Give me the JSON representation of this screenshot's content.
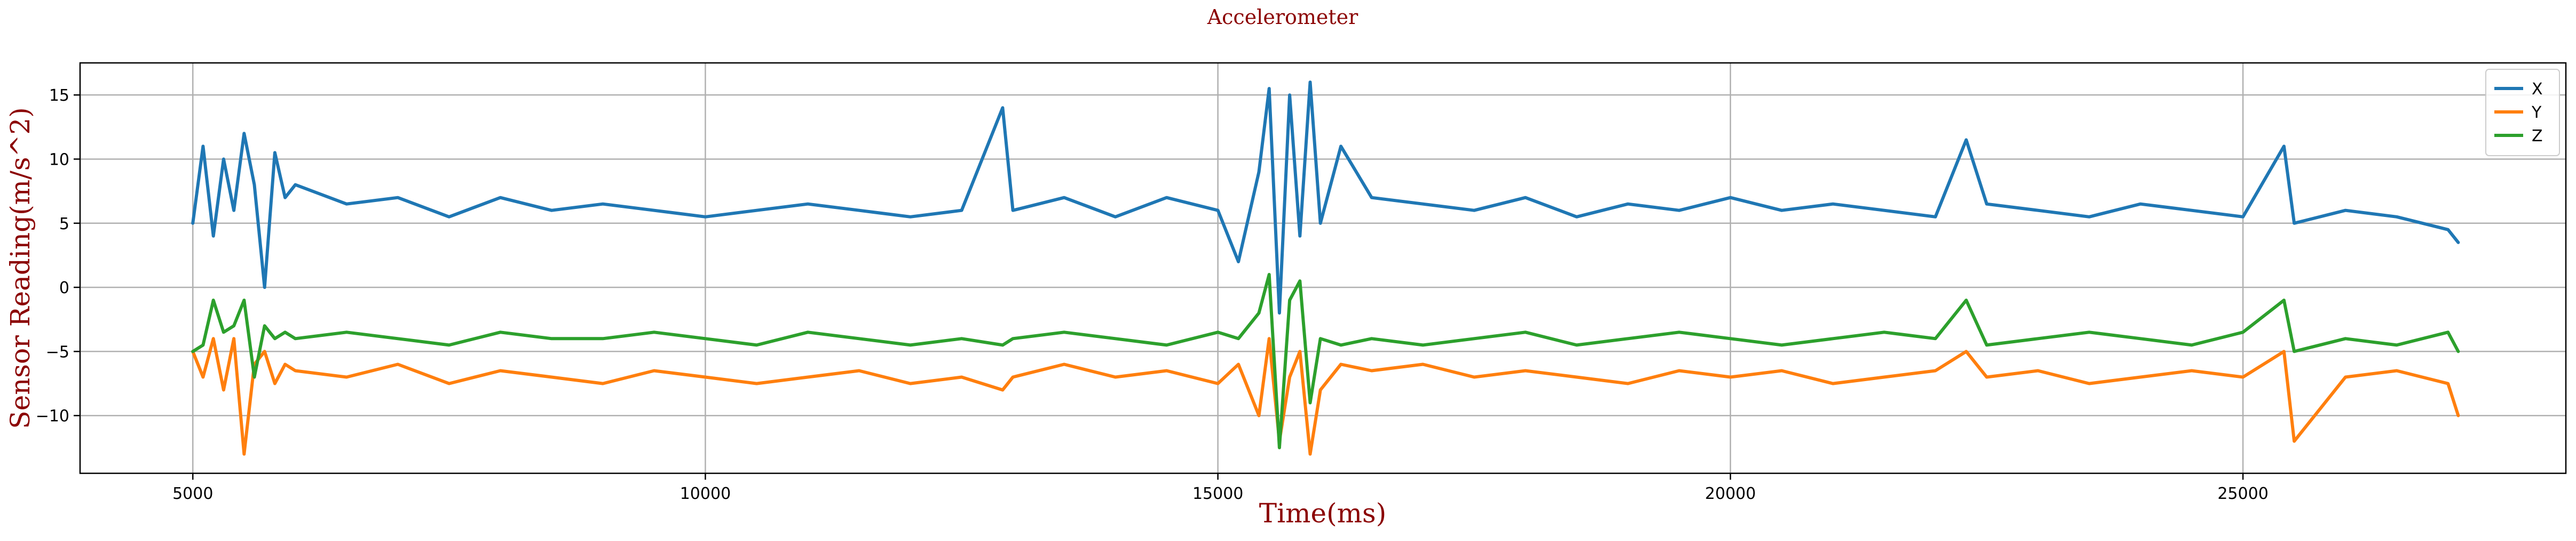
{
  "chart_data": {
    "type": "line",
    "title": "Accelerometer",
    "xlabel": "Time(ms)",
    "ylabel": "Sensor Reading(m/s^2)",
    "xlim": [
      3900,
      28150
    ],
    "ylim": [
      -14.5,
      17.5
    ],
    "xticks": [
      5000,
      10000,
      15000,
      20000,
      25000
    ],
    "yticks": [
      -10,
      -5,
      0,
      5,
      10,
      15
    ],
    "grid": true,
    "legend_position": "top-right",
    "x": [
      5000,
      5100,
      5200,
      5300,
      5400,
      5500,
      5600,
      5700,
      5800,
      5900,
      6000,
      6500,
      7000,
      7500,
      8000,
      8500,
      9000,
      9500,
      10000,
      10500,
      11000,
      11500,
      12000,
      12500,
      12900,
      13000,
      13500,
      14000,
      14500,
      15000,
      15200,
      15400,
      15500,
      15600,
      15700,
      15800,
      15900,
      16000,
      16200,
      16500,
      17000,
      17500,
      18000,
      18500,
      19000,
      19500,
      20000,
      20500,
      21000,
      21500,
      22000,
      22300,
      22500,
      23000,
      23500,
      24000,
      24500,
      25000,
      25400,
      25500,
      26000,
      26500,
      27000,
      27100
    ],
    "series": [
      {
        "name": "X",
        "color": "#1f77b4",
        "values": [
          5,
          11,
          4,
          10,
          6,
          12,
          8,
          0,
          10.5,
          7,
          8,
          6.5,
          7,
          5.5,
          7,
          6,
          6.5,
          6,
          5.5,
          6,
          6.5,
          6,
          5.5,
          6,
          14,
          6,
          7,
          5.5,
          7,
          6,
          2,
          9,
          15.5,
          -2,
          15,
          4,
          16,
          5,
          11,
          7,
          6.5,
          6,
          7,
          5.5,
          6.5,
          6,
          7,
          6,
          6.5,
          6,
          5.5,
          11.5,
          6.5,
          6,
          5.5,
          6.5,
          6,
          5.5,
          11,
          5,
          6,
          5.5,
          4.5,
          3.5
        ]
      },
      {
        "name": "Y",
        "color": "#ff7f0e",
        "values": [
          -5,
          -7,
          -4,
          -8,
          -4,
          -13,
          -6,
          -5,
          -7.5,
          -6,
          -6.5,
          -7,
          -6,
          -7.5,
          -6.5,
          -7,
          -7.5,
          -6.5,
          -7,
          -7.5,
          -7,
          -6.5,
          -7.5,
          -7,
          -8,
          -7,
          -6,
          -7,
          -6.5,
          -7.5,
          -6,
          -10,
          -4,
          -12,
          -7,
          -5,
          -13,
          -8,
          -6,
          -6.5,
          -6,
          -7,
          -6.5,
          -7,
          -7.5,
          -6.5,
          -7,
          -6.5,
          -7.5,
          -7,
          -6.5,
          -5,
          -7,
          -6.5,
          -7.5,
          -7,
          -6.5,
          -7,
          -5,
          -12,
          -7,
          -6.5,
          -7.5,
          -10
        ]
      },
      {
        "name": "Z",
        "color": "#2ca02c",
        "values": [
          -5,
          -4.5,
          -1,
          -3.5,
          -3,
          -1,
          -7,
          -3,
          -4,
          -3.5,
          -4,
          -3.5,
          -4,
          -4.5,
          -3.5,
          -4,
          -4,
          -3.5,
          -4,
          -4.5,
          -3.5,
          -4,
          -4.5,
          -4,
          -4.5,
          -4,
          -3.5,
          -4,
          -4.5,
          -3.5,
          -4,
          -2,
          1,
          -12.5,
          -1,
          0.5,
          -9,
          -4,
          -4.5,
          -4,
          -4.5,
          -4,
          -3.5,
          -4.5,
          -4,
          -3.5,
          -4,
          -4.5,
          -4,
          -3.5,
          -4,
          -1,
          -4.5,
          -4,
          -3.5,
          -4,
          -4.5,
          -3.5,
          -1,
          -5,
          -4,
          -4.5,
          -3.5,
          -5
        ]
      }
    ]
  }
}
